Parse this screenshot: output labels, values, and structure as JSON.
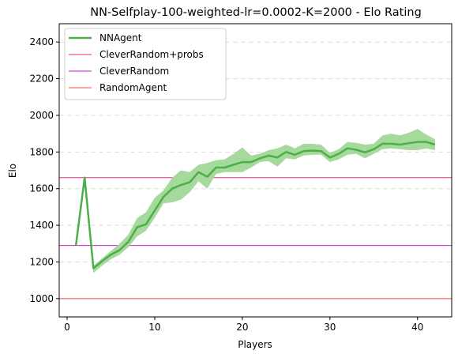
{
  "chart_data": {
    "type": "line",
    "title": "NN-Selfplay-100-weighted-lr=0.0002-K=2000 - Elo Rating",
    "xlabel": "Players",
    "ylabel": "Elo",
    "xlim": [
      -0.9,
      43.9
    ],
    "ylim": [
      900,
      2500
    ],
    "xticks": [
      0,
      10,
      20,
      30,
      40
    ],
    "yticks": [
      1000,
      1200,
      1400,
      1600,
      1800,
      2000,
      2200,
      2400
    ],
    "grid": "y-dashed",
    "legend_position": "top-left",
    "series": [
      {
        "name": "NNAgent",
        "color": "#4daf4a",
        "band_color": "#a6d99c",
        "x": [
          1,
          2,
          3,
          4,
          5,
          6,
          7,
          8,
          9,
          10,
          11,
          12,
          13,
          14,
          15,
          16,
          17,
          18,
          19,
          20,
          21,
          22,
          23,
          24,
          25,
          26,
          27,
          28,
          29,
          30,
          31,
          32,
          33,
          34,
          35,
          36,
          37,
          38,
          39,
          40,
          41,
          42
        ],
        "y": [
          1290,
          1660,
          1165,
          1205,
          1240,
          1265,
          1310,
          1390,
          1405,
          1480,
          1555,
          1600,
          1620,
          1635,
          1690,
          1665,
          1715,
          1715,
          1730,
          1745,
          1745,
          1765,
          1780,
          1770,
          1800,
          1785,
          1805,
          1808,
          1805,
          1770,
          1790,
          1820,
          1812,
          1798,
          1815,
          1845,
          1845,
          1840,
          1848,
          1855,
          1855,
          1840
        ],
        "lower": [
          1290,
          1660,
          1140,
          1180,
          1215,
          1240,
          1280,
          1340,
          1370,
          1440,
          1520,
          1525,
          1540,
          1580,
          1640,
          1600,
          1680,
          1690,
          1690,
          1690,
          1715,
          1745,
          1750,
          1720,
          1765,
          1760,
          1780,
          1785,
          1785,
          1745,
          1760,
          1785,
          1790,
          1765,
          1790,
          1815,
          1820,
          1815,
          1810,
          1810,
          1820,
          1810
        ],
        "upper": [
          1290,
          1660,
          1180,
          1220,
          1260,
          1300,
          1350,
          1440,
          1470,
          1550,
          1590,
          1660,
          1700,
          1690,
          1730,
          1740,
          1755,
          1760,
          1790,
          1825,
          1780,
          1790,
          1810,
          1820,
          1840,
          1820,
          1845,
          1845,
          1840,
          1795,
          1815,
          1855,
          1850,
          1840,
          1845,
          1890,
          1900,
          1890,
          1905,
          1925,
          1895,
          1870
        ]
      },
      {
        "name": "CleverRandom+probs",
        "color": "#e7298a",
        "value": 1660
      },
      {
        "name": "CleverRandom",
        "color": "#c51bca",
        "value": 1290
      },
      {
        "name": "RandomAgent",
        "color": "#f04e3e",
        "value": 1000
      }
    ]
  }
}
